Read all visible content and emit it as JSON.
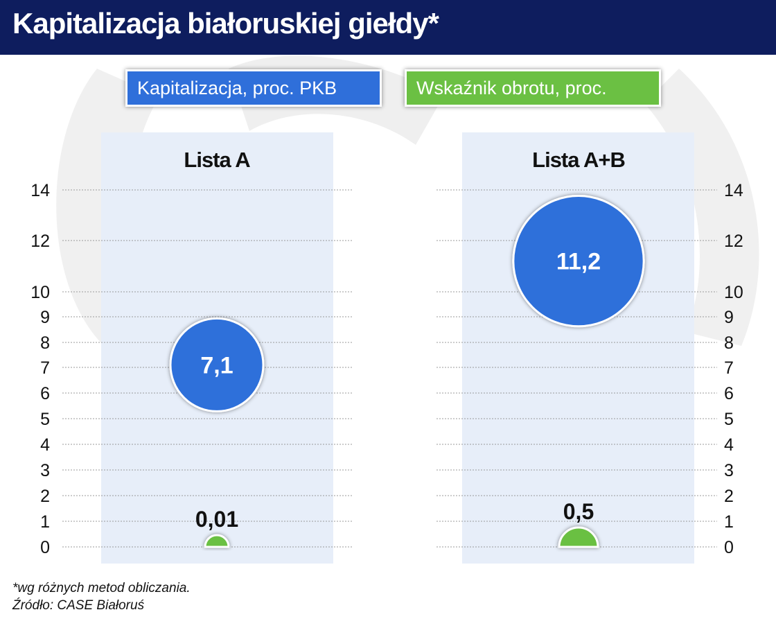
{
  "header": {
    "title": "Kapitalizacja białoruskiej giełdy*"
  },
  "legend": [
    {
      "label": "Kapitalizacja, proc. PKB",
      "color": "#2f6fda"
    },
    {
      "label": "Wskaźnik obrotu, proc.",
      "color": "#6bc043"
    }
  ],
  "footnotes": {
    "note": "*wg różnych metod obliczania.",
    "source": "Źródło: CASE Białoruś"
  },
  "chart_data": {
    "type": "scatter",
    "y_ticks": [
      0,
      1,
      2,
      3,
      4,
      5,
      6,
      7,
      8,
      9,
      10,
      12,
      14
    ],
    "y_tick_labels": [
      "0",
      "1",
      "2",
      "3",
      "4",
      "5",
      "6",
      "7",
      "8",
      "9",
      "10",
      "12",
      "14"
    ],
    "ylim": [
      0,
      14
    ],
    "grid": true,
    "legend_position": "top",
    "panels": [
      {
        "title": "Lista A",
        "points": [
          {
            "series": "Kapitalizacja, proc. PKB",
            "value": 7.1,
            "label": "7,1",
            "color": "#2f6fda"
          },
          {
            "series": "Wskaźnik obrotu, proc.",
            "value": 0.01,
            "label": "0,01",
            "color": "#6bc043"
          }
        ]
      },
      {
        "title": "Lista A+B",
        "points": [
          {
            "series": "Kapitalizacja, proc. PKB",
            "value": 11.2,
            "label": "11,2",
            "color": "#2f6fda"
          },
          {
            "series": "Wskaźnik obrotu, proc.",
            "value": 0.5,
            "label": "0,5",
            "color": "#6bc043"
          }
        ]
      }
    ]
  }
}
